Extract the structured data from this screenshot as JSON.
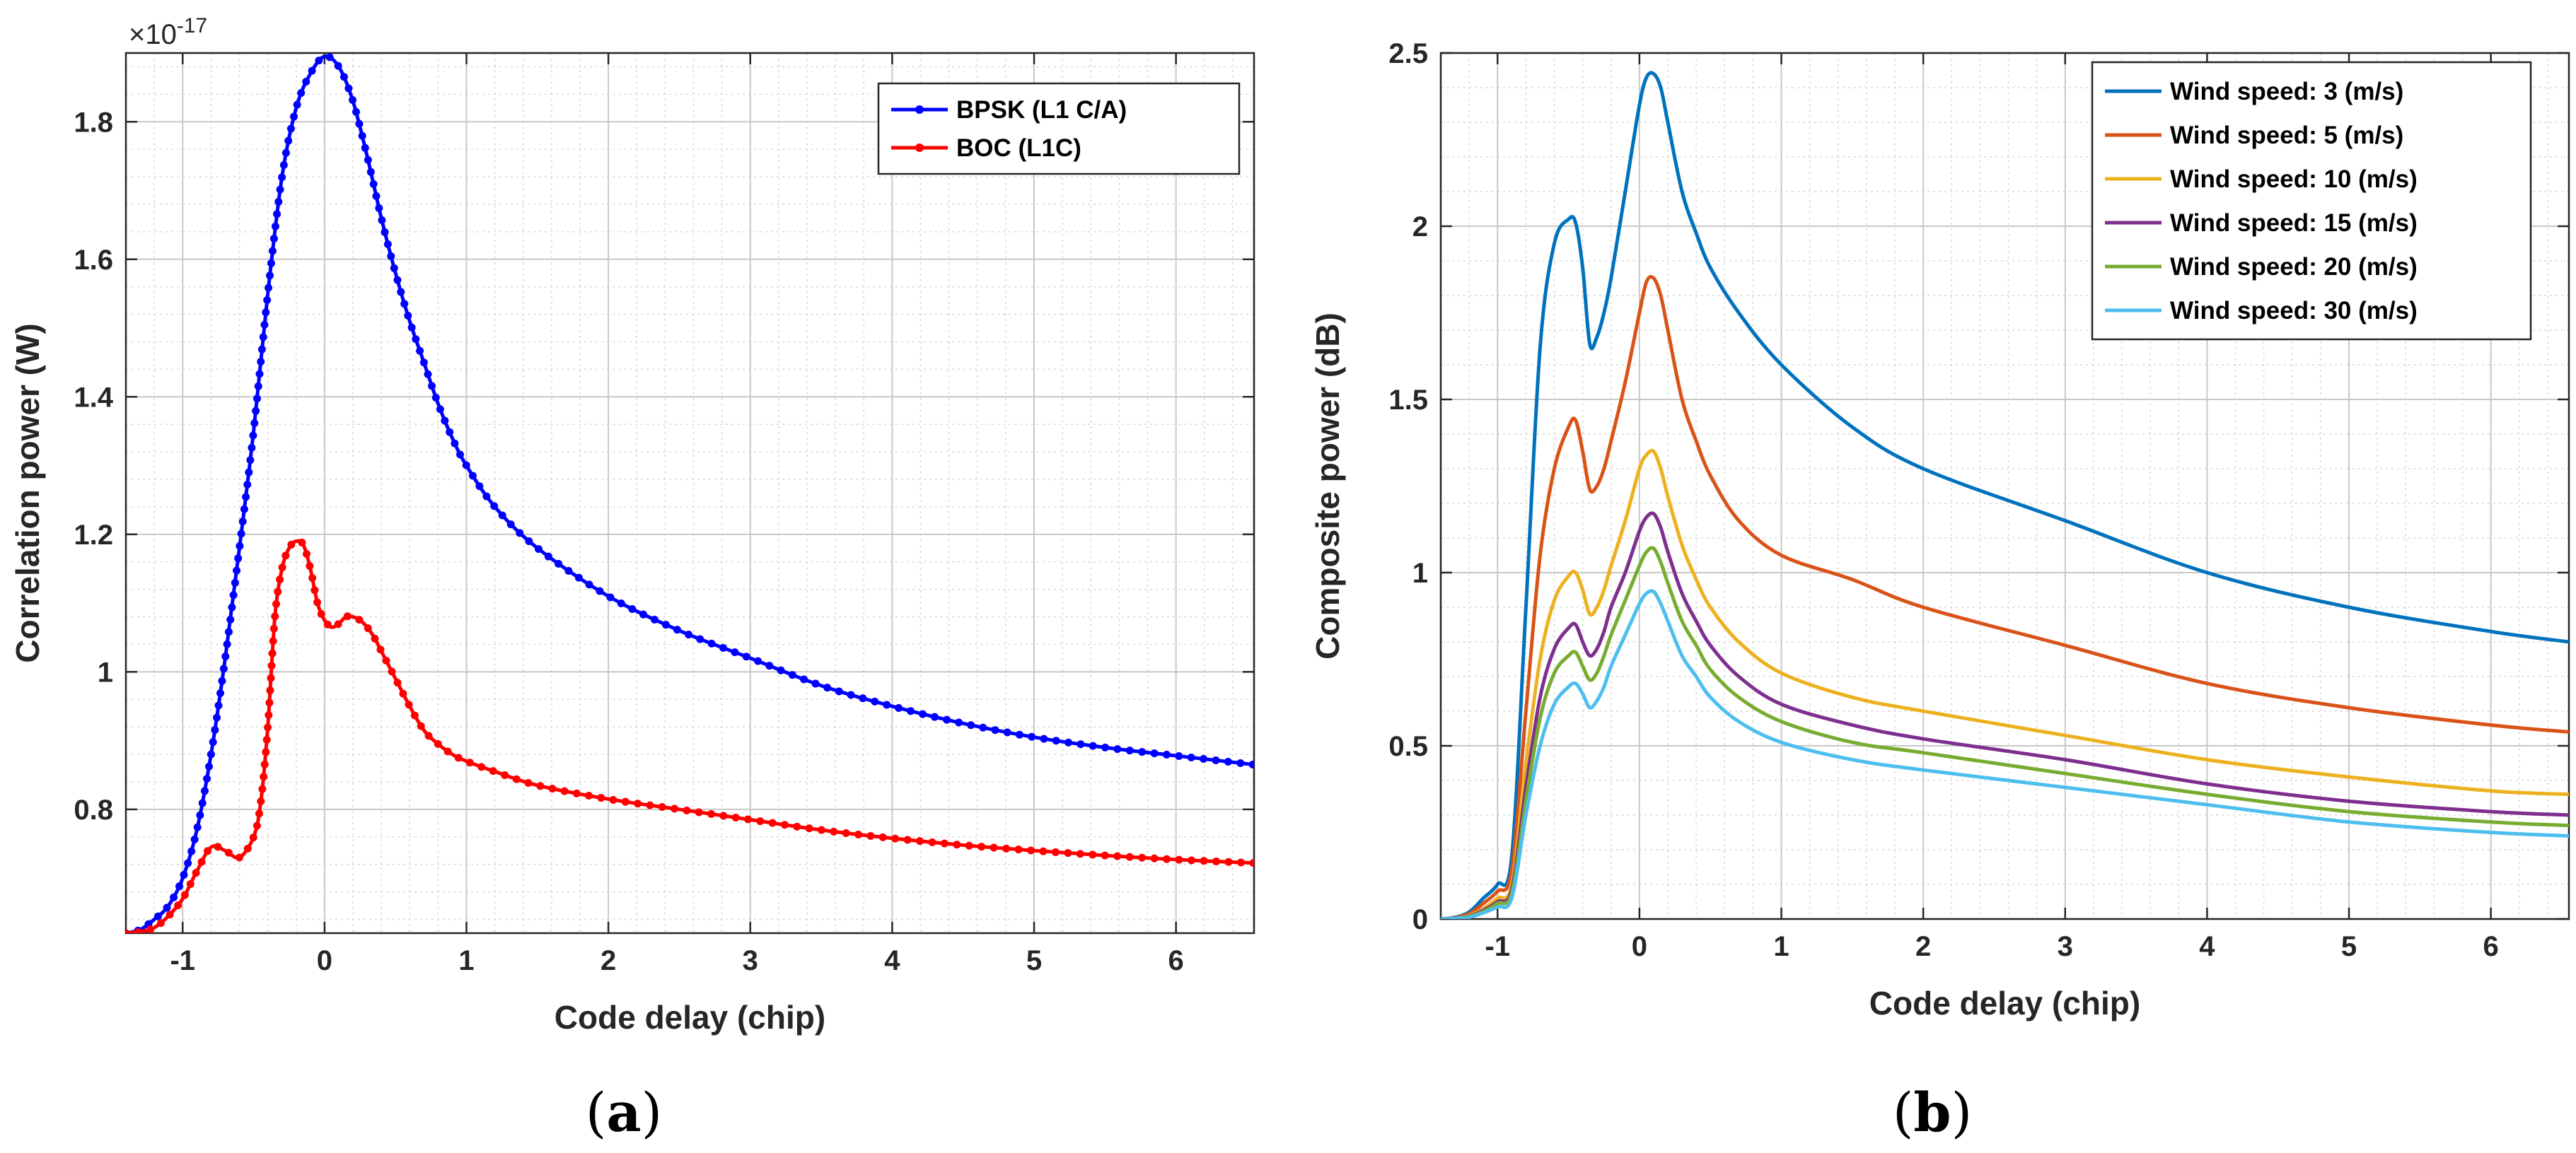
{
  "chart_data": [
    {
      "type": "line",
      "id": "a",
      "caption_label": "a",
      "xlabel": "Code delay (chip)",
      "ylabel": "Correlation power (W)",
      "y_exponent_base": "×10",
      "y_exponent_power": "-17",
      "xlim": [
        -1.4,
        6.55
      ],
      "ylim": [
        0.62,
        1.9
      ],
      "xticks": [
        -1,
        0,
        1,
        2,
        3,
        4,
        5,
        6
      ],
      "xtick_labels": [
        "-1",
        "0",
        "1",
        "2",
        "3",
        "4",
        "5",
        "6"
      ],
      "yticks": [
        0.8,
        1.0,
        1.2,
        1.4,
        1.6,
        1.8
      ],
      "ytick_labels": [
        "0.8",
        "1",
        "1.2",
        "1.4",
        "1.6",
        "1.8"
      ],
      "grid": true,
      "legend_position": "top-right",
      "markers": true,
      "series": [
        {
          "name": "BPSK (L1 C/A)",
          "color": "#0000ff",
          "x": [
            -1.4,
            -1.3,
            -1.2,
            -1.1,
            -1.0,
            -0.9,
            -0.8,
            -0.7,
            -0.6,
            -0.5,
            -0.4,
            -0.3,
            -0.2,
            -0.1,
            0.0,
            0.1,
            0.2,
            0.3,
            0.4,
            0.5,
            0.6,
            0.7,
            0.8,
            0.9,
            1.0,
            1.2,
            1.5,
            2.0,
            2.5,
            3.0,
            3.5,
            4.0,
            4.5,
            5.0,
            5.5,
            6.0,
            6.55
          ],
          "y": [
            0.62,
            0.625,
            0.64,
            0.66,
            0.7,
            0.77,
            0.88,
            1.02,
            1.18,
            1.35,
            1.55,
            1.72,
            1.82,
            1.87,
            1.895,
            1.88,
            1.83,
            1.75,
            1.66,
            1.58,
            1.51,
            1.45,
            1.39,
            1.34,
            1.3,
            1.24,
            1.18,
            1.11,
            1.06,
            1.02,
            0.98,
            0.95,
            0.925,
            0.905,
            0.89,
            0.878,
            0.865
          ]
        },
        {
          "name": "BOC (L1C)",
          "color": "#ff0000",
          "x": [
            -1.4,
            -1.3,
            -1.2,
            -1.1,
            -1.0,
            -0.9,
            -0.8,
            -0.7,
            -0.6,
            -0.5,
            -0.45,
            -0.4,
            -0.35,
            -0.3,
            -0.25,
            -0.2,
            -0.15,
            -0.1,
            -0.05,
            0.0,
            0.05,
            0.1,
            0.15,
            0.2,
            0.25,
            0.3,
            0.35,
            0.4,
            0.5,
            0.6,
            0.7,
            0.8,
            0.9,
            1.0,
            1.2,
            1.5,
            2.0,
            2.5,
            3.0,
            3.5,
            4.0,
            4.5,
            5.0,
            5.5,
            6.0,
            6.55
          ],
          "y": [
            0.62,
            0.622,
            0.628,
            0.645,
            0.67,
            0.71,
            0.745,
            0.74,
            0.73,
            0.76,
            0.81,
            0.92,
            1.08,
            1.15,
            1.18,
            1.19,
            1.185,
            1.15,
            1.1,
            1.075,
            1.065,
            1.07,
            1.08,
            1.08,
            1.075,
            1.065,
            1.05,
            1.03,
            0.99,
            0.95,
            0.915,
            0.895,
            0.88,
            0.87,
            0.855,
            0.835,
            0.815,
            0.8,
            0.785,
            0.77,
            0.758,
            0.748,
            0.74,
            0.733,
            0.727,
            0.722
          ]
        }
      ]
    },
    {
      "type": "line",
      "id": "b",
      "caption_label": "b",
      "xlabel": "Code delay (chip)",
      "ylabel": "Composite power (dB)",
      "xlim": [
        -1.4,
        6.55
      ],
      "ylim": [
        0,
        2.5
      ],
      "xticks": [
        -1,
        0,
        1,
        2,
        3,
        4,
        5,
        6
      ],
      "xtick_labels": [
        "-1",
        "0",
        "1",
        "2",
        "3",
        "4",
        "5",
        "6"
      ],
      "yticks": [
        0,
        0.5,
        1.0,
        1.5,
        2.0,
        2.5
      ],
      "ytick_labels": [
        "0",
        "0.5",
        "1",
        "1.5",
        "2",
        "2.5"
      ],
      "grid": true,
      "legend_position": "top-right",
      "markers": false,
      "x": [
        -1.4,
        -1.3,
        -1.2,
        -1.1,
        -1.0,
        -0.9,
        -0.8,
        -0.7,
        -0.6,
        -0.5,
        -0.45,
        -0.4,
        -0.35,
        -0.3,
        -0.25,
        -0.2,
        -0.1,
        0.0,
        0.05,
        0.1,
        0.15,
        0.2,
        0.3,
        0.4,
        0.5,
        0.7,
        1.0,
        1.5,
        2.0,
        3.0,
        4.0,
        5.0,
        6.0,
        6.55
      ],
      "series": [
        {
          "name": "Wind speed: 3 (m/s)",
          "color": "#0072bd",
          "y": [
            0,
            0.005,
            0.02,
            0.06,
            0.1,
            0.18,
            0.9,
            1.65,
            1.95,
            2.02,
            2.01,
            1.88,
            1.66,
            1.68,
            1.75,
            1.85,
            2.1,
            2.35,
            2.43,
            2.44,
            2.4,
            2.3,
            2.1,
            1.98,
            1.88,
            1.75,
            1.6,
            1.42,
            1.3,
            1.15,
            1.0,
            0.9,
            0.83,
            0.8
          ]
        },
        {
          "name": "Wind speed: 5 (m/s)",
          "color": "#d95319",
          "y": [
            0,
            0.004,
            0.015,
            0.045,
            0.08,
            0.14,
            0.6,
            1.05,
            1.3,
            1.42,
            1.44,
            1.35,
            1.24,
            1.25,
            1.3,
            1.38,
            1.55,
            1.75,
            1.84,
            1.85,
            1.8,
            1.7,
            1.5,
            1.38,
            1.28,
            1.15,
            1.05,
            0.98,
            0.9,
            0.79,
            0.68,
            0.61,
            0.56,
            0.54
          ]
        },
        {
          "name": "Wind speed: 10 (m/s)",
          "color": "#edb120",
          "y": [
            0,
            0.003,
            0.01,
            0.03,
            0.06,
            0.1,
            0.45,
            0.75,
            0.92,
            0.99,
            1.0,
            0.95,
            0.88,
            0.9,
            0.95,
            1.02,
            1.15,
            1.3,
            1.34,
            1.35,
            1.3,
            1.22,
            1.08,
            0.98,
            0.9,
            0.8,
            0.71,
            0.64,
            0.6,
            0.53,
            0.46,
            0.41,
            0.37,
            0.36
          ]
        },
        {
          "name": "Wind speed: 15 (m/s)",
          "color": "#7e2f8e",
          "y": [
            0,
            0.003,
            0.008,
            0.025,
            0.05,
            0.085,
            0.38,
            0.64,
            0.78,
            0.84,
            0.85,
            0.8,
            0.76,
            0.78,
            0.83,
            0.9,
            1.0,
            1.12,
            1.16,
            1.17,
            1.13,
            1.06,
            0.94,
            0.86,
            0.79,
            0.7,
            0.62,
            0.56,
            0.52,
            0.46,
            0.39,
            0.34,
            0.31,
            0.3
          ]
        },
        {
          "name": "Wind speed: 20 (m/s)",
          "color": "#77ac30",
          "y": [
            0,
            0.002,
            0.007,
            0.022,
            0.045,
            0.075,
            0.34,
            0.58,
            0.71,
            0.76,
            0.77,
            0.73,
            0.69,
            0.71,
            0.76,
            0.82,
            0.92,
            1.02,
            1.06,
            1.07,
            1.03,
            0.97,
            0.86,
            0.79,
            0.72,
            0.64,
            0.57,
            0.51,
            0.48,
            0.42,
            0.36,
            0.31,
            0.28,
            0.27
          ]
        },
        {
          "name": "Wind speed: 30 (m/s)",
          "color": "#4dbeee",
          "y": [
            0,
            0.002,
            0.005,
            0.018,
            0.035,
            0.06,
            0.3,
            0.5,
            0.62,
            0.67,
            0.68,
            0.65,
            0.61,
            0.63,
            0.67,
            0.73,
            0.82,
            0.91,
            0.94,
            0.945,
            0.91,
            0.86,
            0.76,
            0.7,
            0.64,
            0.57,
            0.51,
            0.46,
            0.43,
            0.38,
            0.33,
            0.28,
            0.25,
            0.24
          ]
        }
      ]
    }
  ]
}
